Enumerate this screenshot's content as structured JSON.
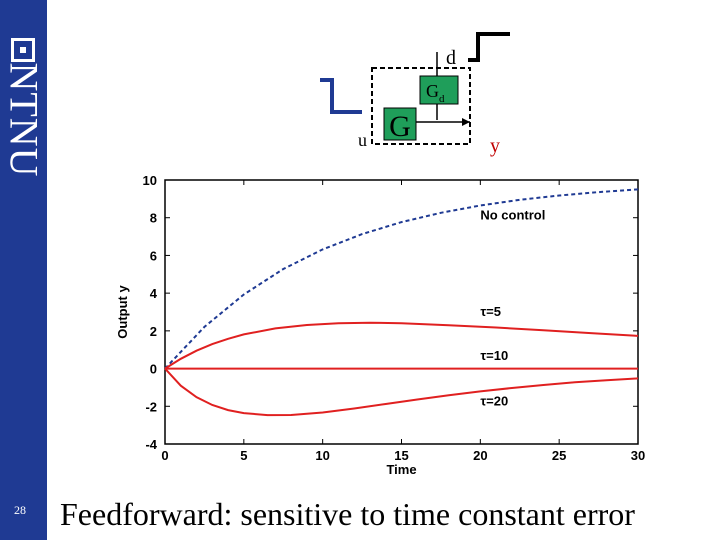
{
  "sidebar": {
    "logo_text": "NTNU",
    "slide_number": "28",
    "color": "#1f3a93"
  },
  "caption": "Feedforward: sensitive to time constant error",
  "diagram": {
    "input_label": "u",
    "disturbance_label": "d",
    "output_label": "y",
    "plant_label": "G",
    "disturbance_block_label": "G",
    "disturbance_block_subscript": "d",
    "block_color": "#1f9e5a",
    "input_step_color": "#1f3a93",
    "output_label_color": "#c00000"
  },
  "chart_data": {
    "type": "line",
    "xlabel": "Time",
    "ylabel": "Output y",
    "xlim": [
      0,
      30
    ],
    "ylim": [
      -4,
      10
    ],
    "xticks": [
      "0",
      "5",
      "10",
      "15",
      "20",
      "25",
      "30"
    ],
    "yticks": [
      "-4",
      "-2",
      "0",
      "2",
      "4",
      "6",
      "8",
      "10"
    ],
    "grid": false,
    "series": [
      {
        "name": "No control",
        "color": "#1f3a93",
        "dash": "4,3",
        "x": [
          0,
          2.5,
          5,
          7.5,
          10,
          12.5,
          15,
          17.5,
          20,
          22.5,
          25,
          27.5,
          30
        ],
        "y": [
          0,
          2.21,
          3.93,
          5.28,
          6.32,
          7.13,
          7.77,
          8.26,
          8.65,
          8.95,
          9.18,
          9.36,
          9.5
        ]
      },
      {
        "name": "τ=5",
        "color": "#e02020",
        "dash": "",
        "x": [
          0,
          1,
          2,
          3,
          4,
          5,
          7,
          9,
          11,
          13,
          15,
          18,
          21,
          24,
          27,
          30
        ],
        "y": [
          0,
          0.52,
          0.95,
          1.3,
          1.58,
          1.81,
          2.13,
          2.31,
          2.4,
          2.43,
          2.4,
          2.3,
          2.18,
          2.03,
          1.88,
          1.73
        ]
      },
      {
        "name": "τ=10",
        "color": "#e02020",
        "dash": "",
        "x": [
          0,
          30
        ],
        "y": [
          0,
          0
        ]
      },
      {
        "name": "τ=20",
        "color": "#e02020",
        "dash": "",
        "x": [
          0,
          1,
          2,
          3,
          4,
          5,
          6.5,
          8,
          10,
          12,
          14,
          16,
          18,
          20,
          22,
          24,
          26,
          28,
          30
        ],
        "y": [
          0,
          -0.91,
          -1.52,
          -1.93,
          -2.2,
          -2.36,
          -2.47,
          -2.46,
          -2.33,
          -2.12,
          -1.88,
          -1.64,
          -1.41,
          -1.21,
          -1.03,
          -0.87,
          -0.73,
          -0.62,
          -0.52
        ]
      }
    ],
    "annotations": [
      {
        "text": "No control",
        "x": 20,
        "y": 7.9
      },
      {
        "text": "τ=5",
        "x": 20,
        "y": 2.8
      },
      {
        "text": "τ=10",
        "x": 20,
        "y": 0.45
      },
      {
        "text": "τ=20",
        "x": 20,
        "y": -1.95
      }
    ]
  }
}
